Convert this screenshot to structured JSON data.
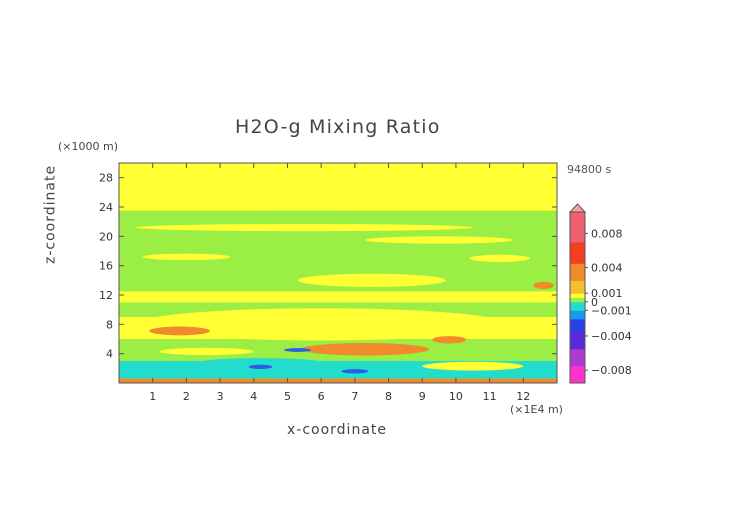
{
  "title": "H2O-g Mixing Ratio",
  "time_label": "94800 s",
  "chart_data": {
    "type": "heatmap",
    "title": "H2O-g Mixing Ratio",
    "xlabel": "x-coordinate",
    "ylabel": "z-coordinate",
    "x_unit": "(×1E4 m)",
    "y_unit": "(×1000 m)",
    "xlim": [
      0,
      13
    ],
    "ylim": [
      0,
      30
    ],
    "x_ticks": [
      1,
      2,
      3,
      4,
      5,
      6,
      7,
      8,
      9,
      10,
      11,
      12
    ],
    "y_ticks": [
      4,
      8,
      12,
      16,
      20,
      24,
      28
    ],
    "colorbar": {
      "labels": [
        "0.008",
        "0.004",
        "0.001",
        "0",
        "−0.001",
        "−0.004",
        "−0.008"
      ],
      "label_values": [
        0.008,
        0.004,
        0.001,
        0,
        -0.001,
        -0.004,
        -0.008
      ],
      "range": [
        -0.0095,
        0.0105
      ],
      "colors": {
        "pink_high": "#f4a0a0",
        "red": "#e83030",
        "orange": "#f08a2a",
        "yellow": "#ffff33",
        "green": "#9aee44",
        "cyan": "#22dccc",
        "blue": "#2a5ee8",
        "purple": "#7030a0",
        "magenta": "#ff33cc"
      }
    },
    "regions": [
      {
        "level": "yellow",
        "x": [
          0,
          13
        ],
        "z": [
          0,
          30
        ]
      },
      {
        "level": "green",
        "x": [
          0,
          13
        ],
        "z": [
          22.5,
          23.5
        ]
      },
      {
        "level": "green",
        "x": [
          0,
          13
        ],
        "z": [
          12.5,
          22.5
        ]
      },
      {
        "level": "green",
        "x": [
          0,
          13
        ],
        "z": [
          9,
          11
        ]
      },
      {
        "level": "green",
        "x": [
          0,
          13
        ],
        "z": [
          1.5,
          6
        ]
      },
      {
        "level": "cyan",
        "x": [
          0,
          13
        ],
        "z": [
          0.6,
          3
        ]
      },
      {
        "level": "orange",
        "x": [
          0,
          13
        ],
        "z": [
          0,
          0.6
        ]
      }
    ],
    "blobs": [
      {
        "level": "yellow",
        "cx": 7.5,
        "cz": 14,
        "rx": 2.2,
        "rz": 0.9
      },
      {
        "level": "yellow",
        "cx": 11.3,
        "cz": 17,
        "rx": 0.9,
        "rz": 0.5
      },
      {
        "level": "yellow",
        "cx": 2,
        "cz": 17.2,
        "rx": 1.3,
        "rz": 0.45
      },
      {
        "level": "yellow",
        "cx": 9.5,
        "cz": 19.5,
        "rx": 2.2,
        "rz": 0.5
      },
      {
        "level": "yellow",
        "cx": 5.5,
        "cz": 21.2,
        "rx": 5,
        "rz": 0.5
      },
      {
        "level": "yellow",
        "cx": 6,
        "cz": 8,
        "rx": 5.5,
        "rz": 2.2
      },
      {
        "level": "yellow",
        "cx": 2.6,
        "cz": 4.3,
        "rx": 1.4,
        "rz": 0.5
      },
      {
        "level": "yellow",
        "cx": 10.5,
        "cz": 2.3,
        "rx": 1.5,
        "rz": 0.6
      },
      {
        "level": "orange",
        "cx": 7.3,
        "cz": 4.6,
        "rx": 1.9,
        "rz": 0.85
      },
      {
        "level": "orange",
        "cx": 1.8,
        "cz": 7.1,
        "rx": 0.9,
        "rz": 0.6
      },
      {
        "level": "orange",
        "cx": 9.8,
        "cz": 5.9,
        "rx": 0.5,
        "rz": 0.5
      },
      {
        "level": "orange",
        "cx": 12.6,
        "cz": 13.3,
        "rx": 0.3,
        "rz": 0.5
      },
      {
        "level": "cyan",
        "cx": 4.2,
        "cz": 2.4,
        "rx": 2.2,
        "rz": 1
      },
      {
        "level": "blue",
        "cx": 4.2,
        "cz": 2.2,
        "rx": 0.35,
        "rz": 0.3
      },
      {
        "level": "blue",
        "cx": 7,
        "cz": 1.6,
        "rx": 0.4,
        "rz": 0.3
      },
      {
        "level": "blue",
        "cx": 5.3,
        "cz": 4.5,
        "rx": 0.4,
        "rz": 0.25
      }
    ]
  }
}
